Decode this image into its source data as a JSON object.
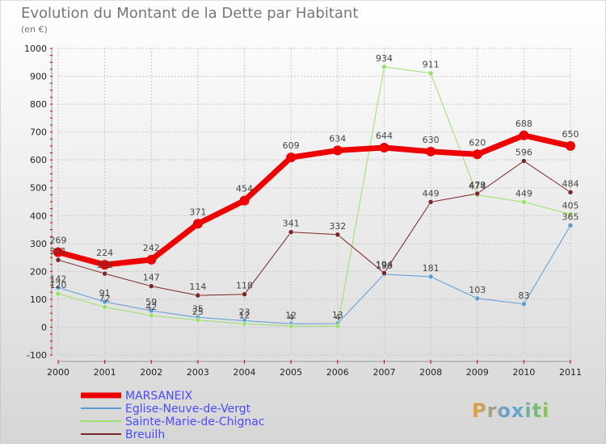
{
  "title": "Evolution du Montant de la Dette par Habitant",
  "subtitle": "(en €)",
  "watermark": "Proxiti",
  "colors": {
    "background_top": "#ffffff",
    "background_bottom": "#d4d4d4",
    "grid": "#c8c8c8",
    "title": "#777777",
    "axis_tick": "#cc0000",
    "legend_text": "#4a4aff",
    "label": "#444444"
  },
  "chart_data": {
    "type": "line",
    "x": [
      "2000",
      "2001",
      "2002",
      "2003",
      "2004",
      "2005",
      "2006",
      "2007",
      "2008",
      "2009",
      "2010",
      "2011"
    ],
    "ylim": [
      -100,
      1000
    ],
    "yticks": [
      -100,
      0,
      100,
      200,
      300,
      400,
      500,
      600,
      700,
      800,
      900,
      1000
    ],
    "grid": true,
    "legend_position": "bottom-left",
    "series": [
      {
        "name": "MARSANEIX",
        "color": "#ee0000",
        "width": 7,
        "values": [
          269,
          224,
          242,
          371,
          454,
          609,
          634,
          644,
          630,
          620,
          688,
          650
        ]
      },
      {
        "name": "Eglise-Neuve-de-Vergt",
        "color": "#5b9bd5",
        "width": 1,
        "values": [
          142,
          91,
          59,
          35,
          23,
          12,
          13,
          190,
          181,
          103,
          83,
          365
        ]
      },
      {
        "name": "Sainte-Marie-de-Chignac",
        "color": "#9ae06a",
        "width": 1,
        "values": [
          120,
          72,
          42,
          25,
          12,
          4,
          4,
          934,
          911,
          474,
          449,
          405
        ]
      },
      {
        "name": "Breuilh",
        "color": "#7a2626",
        "width": 1,
        "values": [
          241,
          192,
          147,
          114,
          118,
          341,
          332,
          194,
          449,
          479,
          596,
          484
        ]
      }
    ]
  }
}
